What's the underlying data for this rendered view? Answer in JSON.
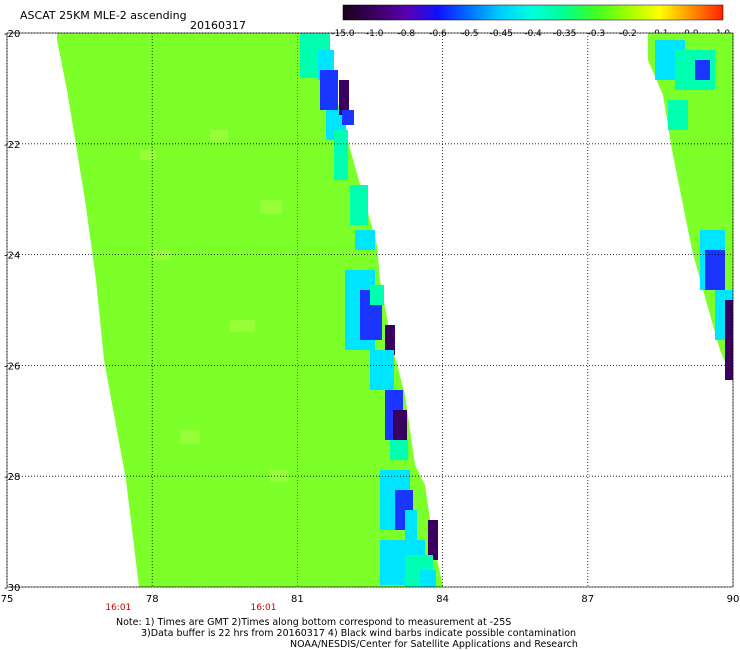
{
  "header": {
    "title": "ASCAT 25KM MLE-2 ascending",
    "date": "20160317"
  },
  "colorbar": {
    "labels": [
      "-15.0",
      "-1.0",
      "-0.8",
      "-0.6",
      "-0.5",
      "-0.45",
      "-0.4",
      "-0.35",
      "-0.3",
      "-0.2",
      "-0.1",
      "0.0",
      "1.0"
    ],
    "colors": [
      "#1a001a",
      "#3a0060",
      "#5a00b0",
      "#1010ff",
      "#0070ff",
      "#00d0ff",
      "#00ffdc",
      "#00ff90",
      "#40ff20",
      "#a0ff00",
      "#ffff00",
      "#ff9000",
      "#ff2000"
    ]
  },
  "map": {
    "lon_range": [
      75,
      90
    ],
    "lat_range": [
      -30,
      -20
    ],
    "lon_ticks": [
      75,
      78,
      81,
      84,
      87,
      90
    ],
    "lat_ticks": [
      -20,
      -22,
      -24,
      -26,
      -28,
      -30
    ],
    "lon_tick_labels": [
      "75",
      "78",
      "81",
      "84",
      "87",
      "90"
    ],
    "lat_tick_labels": [
      "-20",
      "-22",
      "-24",
      "-26",
      "-28",
      "-30"
    ],
    "time_labels": [
      {
        "lon": 77.3,
        "text": "16:01"
      },
      {
        "lon": 80.3,
        "text": "16:01"
      }
    ],
    "swath_color": "#7dff2a",
    "swath_edge_colors": [
      "#00ffb0",
      "#00e5ff",
      "#1a35ff",
      "#3a0060"
    ]
  },
  "notes": {
    "line1": "Note: 1) Times are GMT 2)Times along bottom correspond to measurement at -25S",
    "line2": "3)Data buffer is 22 hrs from 20160317 4) Black wind barbs indicate possible contamination",
    "line3": "NOAA/NESDIS/Center for Satellite Applications and Research"
  }
}
